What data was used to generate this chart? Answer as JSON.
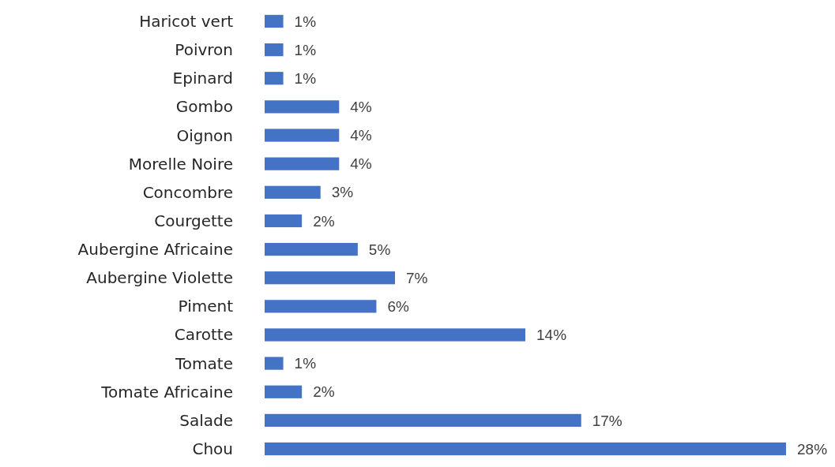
{
  "chart_data": {
    "type": "bar",
    "orientation": "horizontal",
    "xlim": [
      0,
      28
    ],
    "tick_labels": false,
    "categories": [
      "Haricot vert",
      "Poivron",
      "Epinard",
      "Gombo",
      "Oignon",
      "Morelle Noire",
      "Concombre",
      "Courgette",
      "Aubergine Africaine",
      "Aubergine Violette",
      "Piment",
      "Carotte",
      "Tomate",
      "Tomate Africaine",
      "Salade",
      "Chou"
    ],
    "values": [
      1,
      1,
      1,
      4,
      4,
      4,
      3,
      2,
      5,
      7,
      6,
      14,
      1,
      2,
      17,
      28
    ],
    "value_labels": [
      "1%",
      "1%",
      "1%",
      "4%",
      "4%",
      "4%",
      "3%",
      "2%",
      "5%",
      "7%",
      "6%",
      "14%",
      "1%",
      "2%",
      "17%",
      "28%"
    ],
    "color": "#4472c4"
  }
}
